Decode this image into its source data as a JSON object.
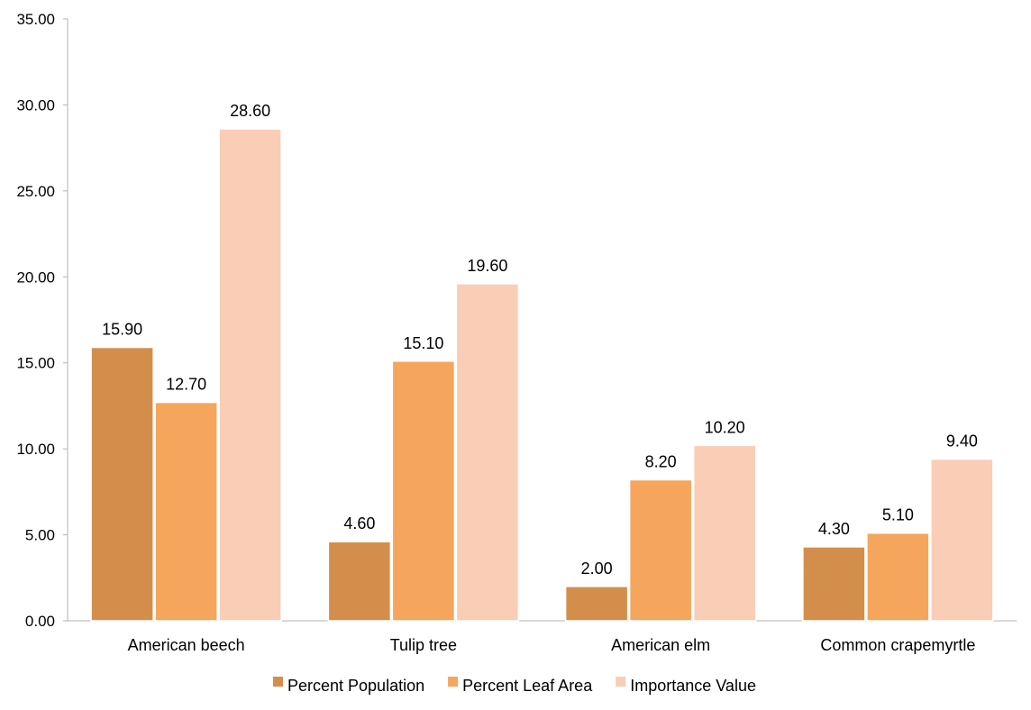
{
  "chart_data": {
    "type": "bar",
    "categories": [
      "American beech",
      "Tulip tree",
      "American elm",
      "Common crapemyrtle"
    ],
    "series": [
      {
        "name": "Percent Population",
        "values": [
          15.9,
          4.6,
          2.0,
          4.3
        ],
        "color": "#d48e4b"
      },
      {
        "name": "Percent Leaf Area",
        "values": [
          12.7,
          15.1,
          8.2,
          5.1
        ],
        "color": "#f5a55c"
      },
      {
        "name": "Importance Value",
        "values": [
          28.6,
          19.6,
          10.2,
          9.4
        ],
        "color": "#f9cdb6"
      }
    ],
    "ylim": [
      0,
      35
    ],
    "y_ticks": [
      0,
      5,
      10,
      15,
      20,
      25,
      30,
      35
    ],
    "tick_decimals": 2,
    "label_decimals": 2,
    "gridlines": false,
    "legend_position": "bottom"
  }
}
